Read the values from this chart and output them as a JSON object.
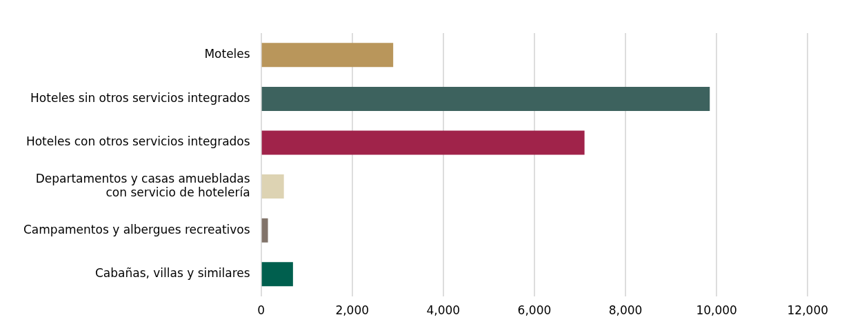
{
  "chart_data": {
    "type": "bar",
    "orientation": "horizontal",
    "categories": [
      "Moteles",
      "Hoteles sin otros servicios integrados",
      "Hoteles con otros servicios integrados",
      "Departamentos y casas amuebladas con servicio de hotelería",
      "Campamentos y albergues recreativos",
      "Cabañas, villas y similares"
    ],
    "values": [
      2900,
      9850,
      7100,
      500,
      150,
      700
    ],
    "colors": [
      "#b9965b",
      "#3d625e",
      "#a0234a",
      "#ddd3b3",
      "#817369",
      "#005f4e"
    ],
    "xlim": [
      0,
      12000
    ],
    "xticks": [
      {
        "value": 0,
        "label": "0"
      },
      {
        "value": 2000,
        "label": "2,000"
      },
      {
        "value": 4000,
        "label": "4,000"
      },
      {
        "value": 6000,
        "label": "6,000"
      },
      {
        "value": 8000,
        "label": "8,000"
      },
      {
        "value": 10000,
        "label": "10,000"
      },
      {
        "value": 12000,
        "label": "12,000"
      }
    ],
    "grid": "x",
    "legend": false
  }
}
